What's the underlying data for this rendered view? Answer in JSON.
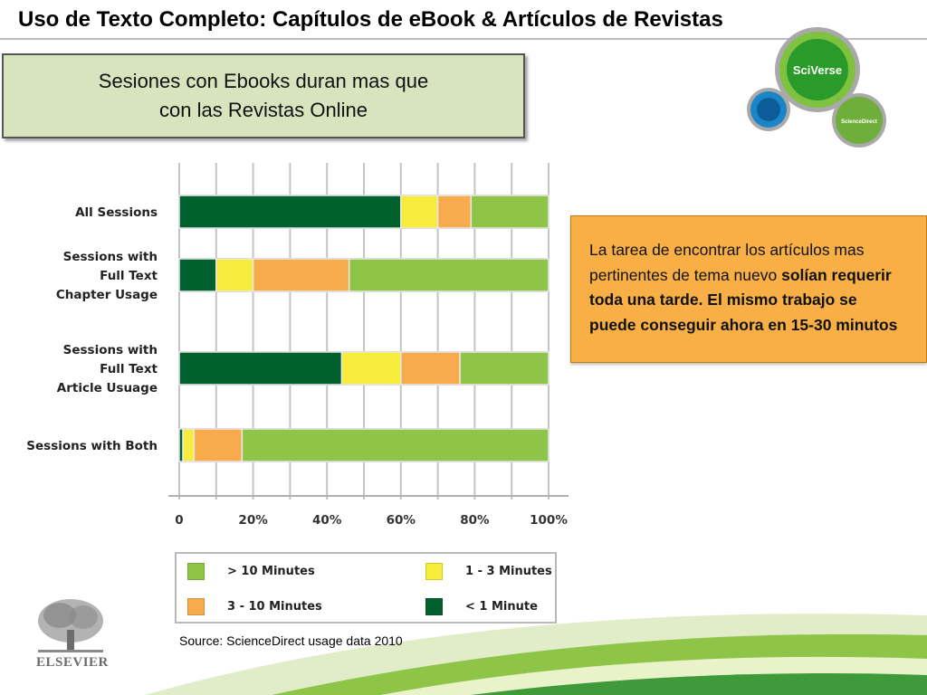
{
  "slide": {
    "title": "Uso de Texto Completo: Capítulos de eBook & Artículos de Revistas",
    "box_line1": "Sesiones con Ebooks duran mas que",
    "box_line2": "con las Revistas Online",
    "callout_normal": "La tarea de encontrar los artículos mas  pertinentes de tema nuevo",
    "callout_bold": "solían requerir toda una tarde. El mismo trabajo se puede conseguir ahora en 15-30 minutos",
    "source": "Source: ScienceDirect usage data 2010"
  },
  "logos": {
    "sciverse": "SciVerse",
    "sciencedirect": "ScienceDirect",
    "elsevier": "ELSEVIER"
  },
  "colors": {
    "lt1": "#00612f",
    "m1_3": "#f6ec3b",
    "m3_10": "#f7ab4c",
    "gt10": "#8ec549",
    "callout": "#f8b046",
    "box": "#d7e4bd"
  },
  "chart_data": {
    "type": "bar",
    "orientation": "horizontal",
    "stacked": true,
    "categories": [
      [
        "All Sessions"
      ],
      [
        "Sessions with",
        "Full Text",
        "Chapter Usage"
      ],
      [
        "Sessions with",
        "Full Text",
        "Article Usuage"
      ],
      [
        "Sessions with Both"
      ]
    ],
    "series": [
      {
        "name": "< 1 Minute",
        "color": "#00612f",
        "values": [
          60,
          10,
          44,
          1
        ]
      },
      {
        "name": "1 - 3 Minutes",
        "color": "#f6ec3b",
        "values": [
          10,
          10,
          16,
          3
        ]
      },
      {
        "name": "3 - 10 Minutes",
        "color": "#f7ab4c",
        "values": [
          9,
          26,
          16,
          13
        ]
      },
      {
        "name": "> 10 Minutes",
        "color": "#8ec549",
        "values": [
          21,
          54,
          24,
          83
        ]
      }
    ],
    "xticks": [
      "0",
      "20%",
      "40%",
      "60%",
      "80%",
      "100%"
    ],
    "xlim": [
      0,
      100
    ],
    "grid": true,
    "legend": [
      {
        "label": "> 10 Minutes",
        "color": "#8ec549"
      },
      {
        "label": "1 - 3 Minutes",
        "color": "#f6ec3b"
      },
      {
        "label": "3 - 10 Minutes",
        "color": "#f7ab4c"
      },
      {
        "label": "< 1 Minute",
        "color": "#00612f"
      }
    ],
    "legend_position": "bottom"
  }
}
